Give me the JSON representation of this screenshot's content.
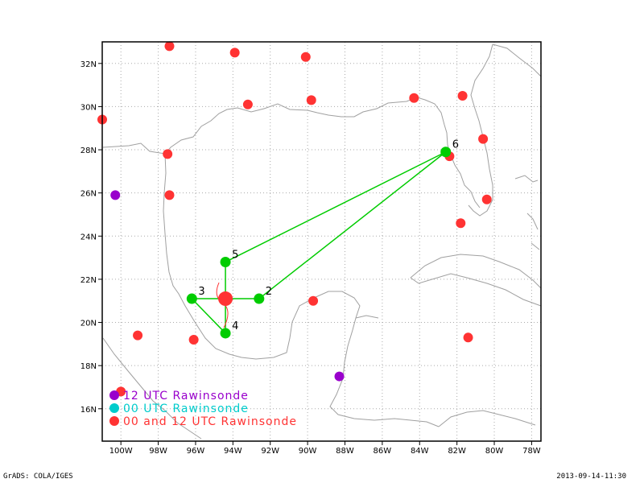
{
  "map": {
    "lon_range": [
      -101,
      -77.5
    ],
    "lat_range": [
      14.5,
      33
    ],
    "lon_ticks": [
      -100,
      -98,
      -96,
      -94,
      -92,
      -90,
      -88,
      -86,
      -84,
      -82,
      -80,
      -78
    ],
    "lon_tick_labels": [
      "100W",
      "98W",
      "96W",
      "94W",
      "92W",
      "90W",
      "88W",
      "86W",
      "84W",
      "82W",
      "80W",
      "78W"
    ],
    "lat_ticks": [
      16,
      18,
      20,
      22,
      24,
      26,
      28,
      30,
      32
    ],
    "lat_tick_labels": [
      "16N",
      "18N",
      "20N",
      "22N",
      "24N",
      "26N",
      "28N",
      "30N",
      "32N"
    ],
    "grid": "dotted",
    "colors": {
      "coast": "#a0a0a0",
      "track": "#00cc00",
      "stations_12utc": "#9900cc",
      "stations_00_12utc": "#ff3333",
      "legend_00utc": "#00cccc",
      "center": "#ff3333"
    }
  },
  "legend": {
    "items": [
      {
        "label": "12 UTC Rawinsonde",
        "color": "#9900cc"
      },
      {
        "label": "00 UTC Rawinsonde",
        "color": "#00cccc"
      },
      {
        "label": "00 and 12 UTC Rawinsonde",
        "color": "#ff3333"
      }
    ]
  },
  "stations_00_12utc": [
    [
      -97.4,
      32.8
    ],
    [
      -93.9,
      32.5
    ],
    [
      -90.1,
      32.3
    ],
    [
      -93.2,
      30.1
    ],
    [
      -89.8,
      30.3
    ],
    [
      -84.3,
      30.4
    ],
    [
      -81.7,
      30.5
    ],
    [
      -80.6,
      28.5
    ],
    [
      -82.4,
      27.7
    ],
    [
      -80.4,
      25.7
    ],
    [
      -81.8,
      24.6
    ],
    [
      -101.0,
      29.4
    ],
    [
      -97.5,
      27.8
    ],
    [
      -97.4,
      25.9
    ],
    [
      -99.1,
      19.4
    ],
    [
      -96.1,
      19.2
    ],
    [
      -89.7,
      21.0
    ],
    [
      -81.4,
      19.3
    ],
    [
      -100.0,
      16.8
    ]
  ],
  "stations_12utc": [
    [
      -100.3,
      25.9
    ],
    [
      -88.3,
      17.5
    ]
  ],
  "track_points": [
    {
      "label": "2",
      "lon": -92.6,
      "lat": 21.1
    },
    {
      "label": "3",
      "lon": -96.2,
      "lat": 21.1
    },
    {
      "label": "4",
      "lon": -94.4,
      "lat": 19.5
    },
    {
      "label": "5",
      "lon": -94.4,
      "lat": 22.8
    },
    {
      "label": "6",
      "lon": -82.6,
      "lat": 27.9
    }
  ],
  "center": {
    "lon": -94.4,
    "lat": 21.1
  },
  "footer": {
    "left": "GrADS: COLA/IGES",
    "right": "2013-09-14-11:30"
  }
}
